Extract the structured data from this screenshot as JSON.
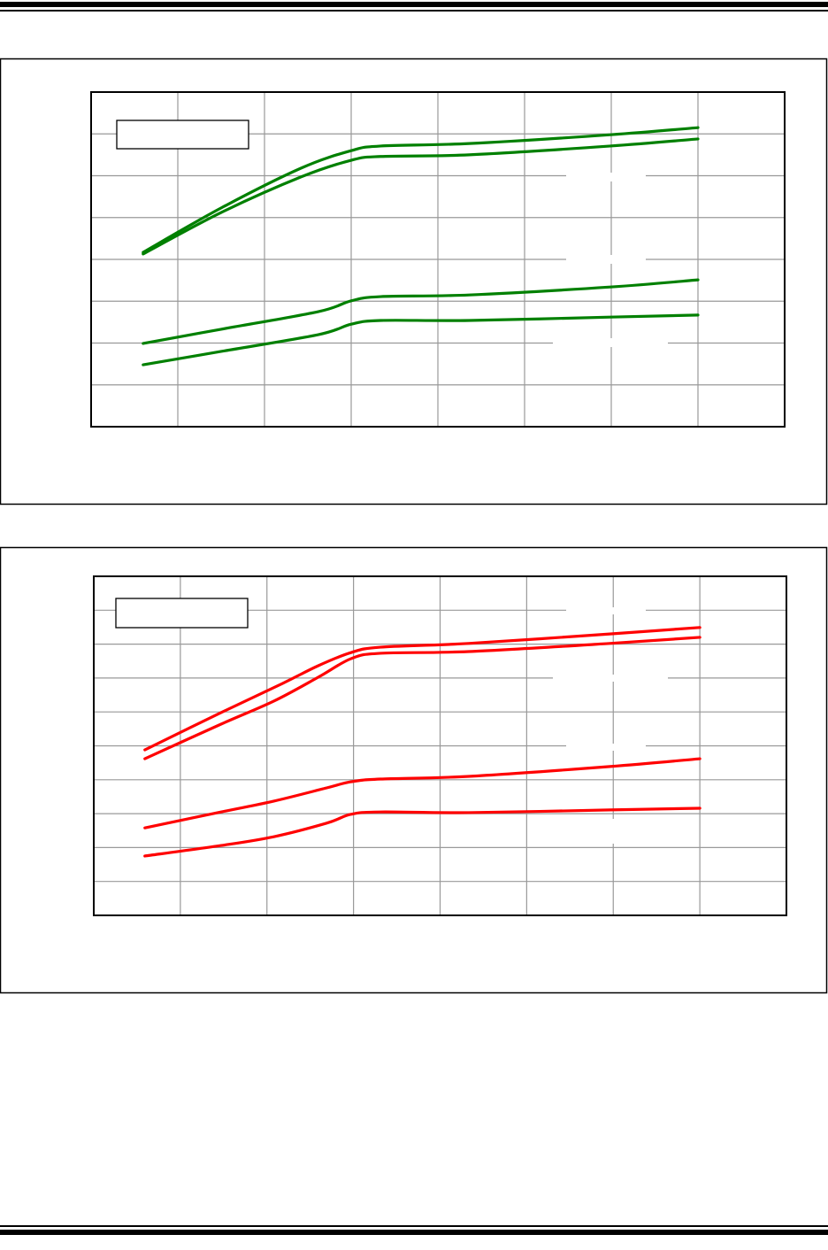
{
  "chart_data": [
    {
      "type": "line",
      "title": "",
      "xlabel": "",
      "ylabel": "",
      "xlim": [
        0,
        8
      ],
      "ylim": [
        0,
        8
      ],
      "grid": true,
      "grid_divisions": {
        "x": 8,
        "y": 8
      },
      "legend": "top-left",
      "series_color": "#008000",
      "series": [
        {
          "x": [
            0.6,
            1.5,
            2.42,
            3.0,
            3.34,
            4.36,
            5.99,
            7.0
          ],
          "y": [
            4.17,
            5.23,
            6.18,
            6.6,
            6.71,
            6.77,
            6.98,
            7.15
          ]
        },
        {
          "x": [
            0.6,
            1.5,
            2.42,
            3.0,
            3.34,
            4.36,
            5.99,
            7.0
          ],
          "y": [
            4.13,
            5.12,
            5.97,
            6.37,
            6.46,
            6.5,
            6.71,
            6.88
          ]
        },
        {
          "x": [
            0.6,
            1.5,
            2.62,
            3.0,
            3.34,
            4.36,
            5.99,
            7.0
          ],
          "y": [
            1.99,
            2.33,
            2.75,
            3.01,
            3.11,
            3.15,
            3.34,
            3.51
          ]
        },
        {
          "x": [
            0.6,
            1.5,
            2.62,
            3.0,
            3.34,
            4.36,
            5.99,
            7.0
          ],
          "y": [
            1.48,
            1.8,
            2.2,
            2.45,
            2.54,
            2.54,
            2.62,
            2.67
          ]
        }
      ]
    },
    {
      "type": "line",
      "title": "",
      "xlabel": "",
      "ylabel": "",
      "xlim": [
        0,
        8
      ],
      "ylim": [
        0,
        10
      ],
      "grid": true,
      "grid_divisions": {
        "x": 8,
        "y": 10
      },
      "legend": "top-left",
      "series_color": "#ff0000",
      "series": [
        {
          "x": [
            0.59,
            1.47,
            2.18,
            2.59,
            2.97,
            3.31,
            4.33,
            5.96,
            7.0
          ],
          "y": [
            4.88,
            5.98,
            6.84,
            7.36,
            7.75,
            7.91,
            8.02,
            8.3,
            8.49
          ]
        },
        {
          "x": [
            0.59,
            1.47,
            2.08,
            2.59,
            2.97,
            3.31,
            4.33,
            5.96,
            7.0
          ],
          "y": [
            4.62,
            5.64,
            6.32,
            7.02,
            7.57,
            7.73,
            7.78,
            8.02,
            8.2
          ]
        },
        {
          "x": [
            0.59,
            1.47,
            2.08,
            2.69,
            2.97,
            3.31,
            4.33,
            5.96,
            7.0
          ],
          "y": [
            2.58,
            3.05,
            3.37,
            3.76,
            3.94,
            4.02,
            4.1,
            4.39,
            4.62
          ]
        },
        {
          "x": [
            0.59,
            1.47,
            2.08,
            2.69,
            2.97,
            3.31,
            4.33,
            5.96,
            7.0
          ],
          "y": [
            1.75,
            2.06,
            2.32,
            2.72,
            2.98,
            3.05,
            3.03,
            3.11,
            3.16
          ]
        }
      ]
    }
  ]
}
